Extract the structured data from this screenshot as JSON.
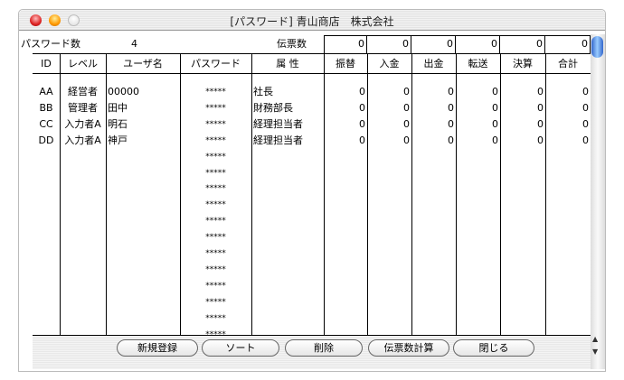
{
  "window": {
    "title": "[パスワード] 青山商店　株式会社"
  },
  "summary": {
    "password_count_label": "パスワード数",
    "password_count": "4",
    "slip_count_label": "伝票数",
    "slip_totals": [
      "0",
      "0",
      "0",
      "0",
      "0",
      "0"
    ]
  },
  "columns": [
    "ID",
    "レベル",
    "ユーザ名",
    "パスワード",
    "属 性",
    "振替",
    "入金",
    "出金",
    "転送",
    "決算",
    "合計"
  ],
  "rows": [
    [
      "AA",
      "経営者",
      "00000",
      "*****",
      "社長",
      "0",
      "0",
      "0",
      "0",
      "0",
      "0"
    ],
    [
      "BB",
      "管理者",
      "田中",
      "*****",
      "財務部長",
      "0",
      "0",
      "0",
      "0",
      "0",
      "0"
    ],
    [
      "CC",
      "入力者A",
      "明石",
      "*****",
      "経理担当者",
      "0",
      "0",
      "0",
      "0",
      "0",
      "0"
    ],
    [
      "DD",
      "入力者A",
      "神戸",
      "*****",
      "経理担当者",
      "0",
      "0",
      "0",
      "0",
      "0",
      "0"
    ],
    [
      "",
      "",
      "",
      "*****",
      "",
      "",
      "",
      "",
      "",
      "",
      ""
    ],
    [
      "",
      "",
      "",
      "*****",
      "",
      "",
      "",
      "",
      "",
      "",
      ""
    ],
    [
      "",
      "",
      "",
      "*****",
      "",
      "",
      "",
      "",
      "",
      "",
      ""
    ],
    [
      "",
      "",
      "",
      "*****",
      "",
      "",
      "",
      "",
      "",
      "",
      ""
    ],
    [
      "",
      "",
      "",
      "*****",
      "",
      "",
      "",
      "",
      "",
      "",
      ""
    ],
    [
      "",
      "",
      "",
      "*****",
      "",
      "",
      "",
      "",
      "",
      "",
      ""
    ],
    [
      "",
      "",
      "",
      "*****",
      "",
      "",
      "",
      "",
      "",
      "",
      ""
    ],
    [
      "",
      "",
      "",
      "*****",
      "",
      "",
      "",
      "",
      "",
      "",
      ""
    ],
    [
      "",
      "",
      "",
      "*****",
      "",
      "",
      "",
      "",
      "",
      "",
      ""
    ],
    [
      "",
      "",
      "",
      "*****",
      "",
      "",
      "",
      "",
      "",
      "",
      ""
    ],
    [
      "",
      "",
      "",
      "*****",
      "",
      "",
      "",
      "",
      "",
      "",
      ""
    ],
    [
      "",
      "",
      "",
      "*****",
      "",
      "",
      "",
      "",
      "",
      "",
      ""
    ]
  ],
  "buttons": [
    "新規登録",
    "ソート",
    "削除",
    "伝票数計算",
    "閉じる"
  ],
  "icons": {
    "close": "close-icon",
    "minimize": "minimize-icon",
    "zoom": "zoom-icon",
    "scroll_up": "arrow-up-icon",
    "scroll_down": "arrow-down-icon"
  }
}
